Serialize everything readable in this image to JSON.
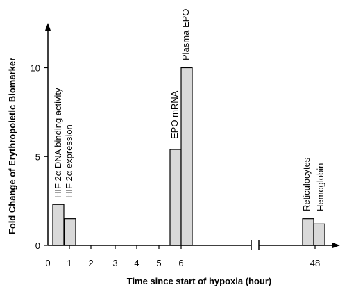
{
  "chart_data": {
    "type": "bar",
    "xlabel": "Time since start of hypoxia (hour)",
    "ylabel": "Fold Change of Erythropoietic Biomarker",
    "ylim": [
      0,
      12
    ],
    "yticks": [
      0,
      5,
      10
    ],
    "xticks": [
      "0",
      "1",
      "2",
      "3",
      "4",
      "5",
      "6",
      "48"
    ],
    "axis_break": true,
    "grid": false,
    "legend": "none",
    "bar_color": "#d9d9d9",
    "series": [
      {
        "name": "HIF 2α DNA binding activity",
        "x": 0.5,
        "value": 2.3
      },
      {
        "name": "HIF 2α expression",
        "x": 1.0,
        "value": 1.5
      },
      {
        "name": "EPO mRNA",
        "x": 6.0,
        "value": 5.4
      },
      {
        "name": "Plasma EPO",
        "x": 6.0,
        "value": 10.0
      },
      {
        "name": "Reticulocytes",
        "x": 48,
        "value": 1.5
      },
      {
        "name": "Hemoglobin",
        "x": 48,
        "value": 1.2
      }
    ]
  }
}
